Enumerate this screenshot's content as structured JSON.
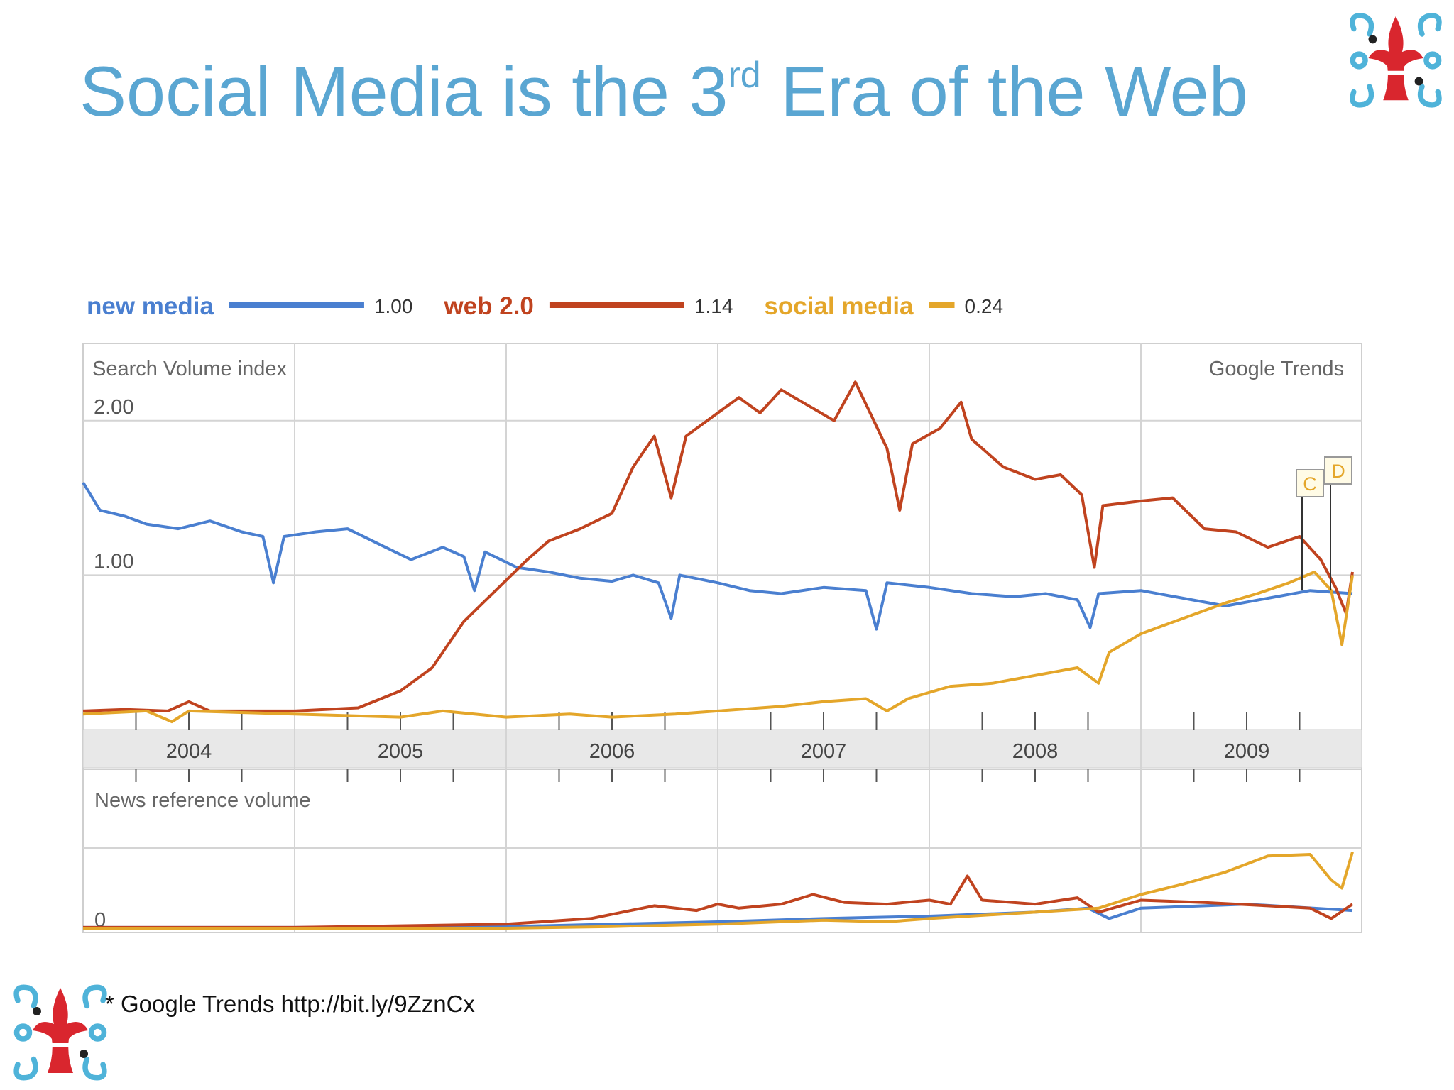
{
  "slide": {
    "title_main": "Social Media is the 3",
    "title_sup": "rd",
    "title_rest": " Era of the Web",
    "footnote": "* Google Trends http://bit.ly/9ZznCx",
    "title_color": "#5aa6d2"
  },
  "chart_data": {
    "type": "line",
    "source_label": "Google Trends",
    "legend": [
      {
        "name": "new media",
        "value": "1.00",
        "color": "#4a7fd0"
      },
      {
        "name": "web 2.0",
        "value": "1.14",
        "color": "#c0431f"
      },
      {
        "name": "social media",
        "value": "0.24",
        "color": "#e4a62a"
      }
    ],
    "x_labels": [
      "2004",
      "2005",
      "2006",
      "2007",
      "2008",
      "2009"
    ],
    "x_range": [
      2004.0,
      2010.0
    ],
    "annotations": [
      "C",
      "D"
    ],
    "grid": true,
    "search_volume": {
      "title": "Search Volume index",
      "ylim": [
        0,
        2.5
      ],
      "yticks": [
        {
          "value": 1,
          "label": "1.00"
        },
        {
          "value": 2,
          "label": "2.00"
        }
      ],
      "series": [
        {
          "name": "new media",
          "color": "#4a7fd0",
          "points": [
            [
              2004.0,
              1.6
            ],
            [
              2004.08,
              1.42
            ],
            [
              2004.2,
              1.38
            ],
            [
              2004.3,
              1.33
            ],
            [
              2004.45,
              1.3
            ],
            [
              2004.6,
              1.35
            ],
            [
              2004.75,
              1.28
            ],
            [
              2004.85,
              1.25
            ],
            [
              2004.9,
              0.95
            ],
            [
              2004.95,
              1.25
            ],
            [
              2005.1,
              1.28
            ],
            [
              2005.25,
              1.3
            ],
            [
              2005.4,
              1.2
            ],
            [
              2005.55,
              1.1
            ],
            [
              2005.7,
              1.18
            ],
            [
              2005.8,
              1.12
            ],
            [
              2005.85,
              0.9
            ],
            [
              2005.9,
              1.15
            ],
            [
              2006.05,
              1.05
            ],
            [
              2006.2,
              1.02
            ],
            [
              2006.35,
              0.98
            ],
            [
              2006.5,
              0.96
            ],
            [
              2006.6,
              1.0
            ],
            [
              2006.72,
              0.95
            ],
            [
              2006.78,
              0.72
            ],
            [
              2006.82,
              1.0
            ],
            [
              2007.0,
              0.95
            ],
            [
              2007.15,
              0.9
            ],
            [
              2007.3,
              0.88
            ],
            [
              2007.5,
              0.92
            ],
            [
              2007.7,
              0.9
            ],
            [
              2007.75,
              0.65
            ],
            [
              2007.8,
              0.95
            ],
            [
              2008.0,
              0.92
            ],
            [
              2008.2,
              0.88
            ],
            [
              2008.4,
              0.86
            ],
            [
              2008.55,
              0.88
            ],
            [
              2008.7,
              0.84
            ],
            [
              2008.76,
              0.66
            ],
            [
              2008.8,
              0.88
            ],
            [
              2009.0,
              0.9
            ],
            [
              2009.2,
              0.85
            ],
            [
              2009.4,
              0.8
            ],
            [
              2009.6,
              0.85
            ],
            [
              2009.8,
              0.9
            ],
            [
              2010.0,
              0.88
            ]
          ]
        },
        {
          "name": "web 2.0",
          "color": "#c0431f",
          "points": [
            [
              2004.0,
              0.12
            ],
            [
              2004.2,
              0.13
            ],
            [
              2004.4,
              0.12
            ],
            [
              2004.5,
              0.18
            ],
            [
              2004.6,
              0.12
            ],
            [
              2005.0,
              0.12
            ],
            [
              2005.3,
              0.14
            ],
            [
              2005.5,
              0.25
            ],
            [
              2005.65,
              0.4
            ],
            [
              2005.8,
              0.7
            ],
            [
              2005.95,
              0.9
            ],
            [
              2006.1,
              1.1
            ],
            [
              2006.2,
              1.22
            ],
            [
              2006.35,
              1.3
            ],
            [
              2006.5,
              1.4
            ],
            [
              2006.6,
              1.7
            ],
            [
              2006.7,
              1.9
            ],
            [
              2006.78,
              1.5
            ],
            [
              2006.85,
              1.9
            ],
            [
              2007.0,
              2.05
            ],
            [
              2007.1,
              2.15
            ],
            [
              2007.2,
              2.05
            ],
            [
              2007.3,
              2.2
            ],
            [
              2007.45,
              2.08
            ],
            [
              2007.55,
              2.0
            ],
            [
              2007.65,
              2.25
            ],
            [
              2007.72,
              2.05
            ],
            [
              2007.8,
              1.82
            ],
            [
              2007.86,
              1.42
            ],
            [
              2007.92,
              1.85
            ],
            [
              2008.05,
              1.95
            ],
            [
              2008.15,
              2.12
            ],
            [
              2008.2,
              1.88
            ],
            [
              2008.35,
              1.7
            ],
            [
              2008.5,
              1.62
            ],
            [
              2008.62,
              1.65
            ],
            [
              2008.72,
              1.52
            ],
            [
              2008.78,
              1.05
            ],
            [
              2008.82,
              1.45
            ],
            [
              2009.0,
              1.48
            ],
            [
              2009.15,
              1.5
            ],
            [
              2009.3,
              1.3
            ],
            [
              2009.45,
              1.28
            ],
            [
              2009.6,
              1.18
            ],
            [
              2009.75,
              1.25
            ],
            [
              2009.85,
              1.1
            ],
            [
              2009.92,
              0.92
            ],
            [
              2009.97,
              0.75
            ],
            [
              2010.0,
              1.02
            ]
          ]
        },
        {
          "name": "social media",
          "color": "#e4a62a",
          "points": [
            [
              2004.0,
              0.1
            ],
            [
              2004.3,
              0.12
            ],
            [
              2004.42,
              0.05
            ],
            [
              2004.5,
              0.12
            ],
            [
              2005.0,
              0.1
            ],
            [
              2005.5,
              0.08
            ],
            [
              2005.7,
              0.12
            ],
            [
              2006.0,
              0.08
            ],
            [
              2006.3,
              0.1
            ],
            [
              2006.5,
              0.08
            ],
            [
              2006.8,
              0.1
            ],
            [
              2007.0,
              0.12
            ],
            [
              2007.3,
              0.15
            ],
            [
              2007.5,
              0.18
            ],
            [
              2007.7,
              0.2
            ],
            [
              2007.8,
              0.12
            ],
            [
              2007.9,
              0.2
            ],
            [
              2008.1,
              0.28
            ],
            [
              2008.3,
              0.3
            ],
            [
              2008.5,
              0.35
            ],
            [
              2008.7,
              0.4
            ],
            [
              2008.8,
              0.3
            ],
            [
              2008.85,
              0.5
            ],
            [
              2009.0,
              0.62
            ],
            [
              2009.2,
              0.72
            ],
            [
              2009.4,
              0.82
            ],
            [
              2009.55,
              0.88
            ],
            [
              2009.7,
              0.95
            ],
            [
              2009.82,
              1.02
            ],
            [
              2009.9,
              0.9
            ],
            [
              2009.95,
              0.55
            ],
            [
              2010.0,
              1.0
            ]
          ]
        }
      ]
    },
    "news_volume": {
      "title": "News reference volume",
      "ylim": [
        0,
        1
      ],
      "yticks": [
        {
          "value": 0,
          "label": "0"
        }
      ],
      "series": [
        {
          "name": "new media",
          "color": "#4a7fd0",
          "points": [
            [
              2004.0,
              0.01
            ],
            [
              2005.0,
              0.01
            ],
            [
              2006.0,
              0.02
            ],
            [
              2006.5,
              0.05
            ],
            [
              2007.0,
              0.08
            ],
            [
              2007.5,
              0.12
            ],
            [
              2008.0,
              0.15
            ],
            [
              2008.5,
              0.2
            ],
            [
              2008.75,
              0.25
            ],
            [
              2008.85,
              0.12
            ],
            [
              2009.0,
              0.25
            ],
            [
              2009.5,
              0.3
            ],
            [
              2010.0,
              0.22
            ]
          ]
        },
        {
          "name": "web 2.0",
          "color": "#c0431f",
          "points": [
            [
              2004.0,
              0.01
            ],
            [
              2005.0,
              0.01
            ],
            [
              2005.5,
              0.03
            ],
            [
              2006.0,
              0.05
            ],
            [
              2006.4,
              0.12
            ],
            [
              2006.7,
              0.28
            ],
            [
              2006.9,
              0.22
            ],
            [
              2007.0,
              0.3
            ],
            [
              2007.1,
              0.25
            ],
            [
              2007.3,
              0.3
            ],
            [
              2007.45,
              0.42
            ],
            [
              2007.6,
              0.32
            ],
            [
              2007.8,
              0.3
            ],
            [
              2008.0,
              0.35
            ],
            [
              2008.1,
              0.3
            ],
            [
              2008.18,
              0.65
            ],
            [
              2008.25,
              0.35
            ],
            [
              2008.5,
              0.3
            ],
            [
              2008.7,
              0.38
            ],
            [
              2008.8,
              0.2
            ],
            [
              2009.0,
              0.35
            ],
            [
              2009.3,
              0.32
            ],
            [
              2009.6,
              0.28
            ],
            [
              2009.8,
              0.25
            ],
            [
              2009.9,
              0.12
            ],
            [
              2010.0,
              0.3
            ]
          ]
        },
        {
          "name": "social media",
          "color": "#e4a62a",
          "points": [
            [
              2004.0,
              0.0
            ],
            [
              2005.0,
              0.0
            ],
            [
              2006.0,
              0.0
            ],
            [
              2006.5,
              0.02
            ],
            [
              2007.0,
              0.05
            ],
            [
              2007.5,
              0.1
            ],
            [
              2007.8,
              0.08
            ],
            [
              2008.0,
              0.12
            ],
            [
              2008.5,
              0.2
            ],
            [
              2008.8,
              0.25
            ],
            [
              2009.0,
              0.42
            ],
            [
              2009.2,
              0.55
            ],
            [
              2009.4,
              0.7
            ],
            [
              2009.6,
              0.9
            ],
            [
              2009.8,
              0.92
            ],
            [
              2009.9,
              0.6
            ],
            [
              2009.95,
              0.5
            ],
            [
              2010.0,
              0.95
            ]
          ]
        }
      ]
    }
  }
}
